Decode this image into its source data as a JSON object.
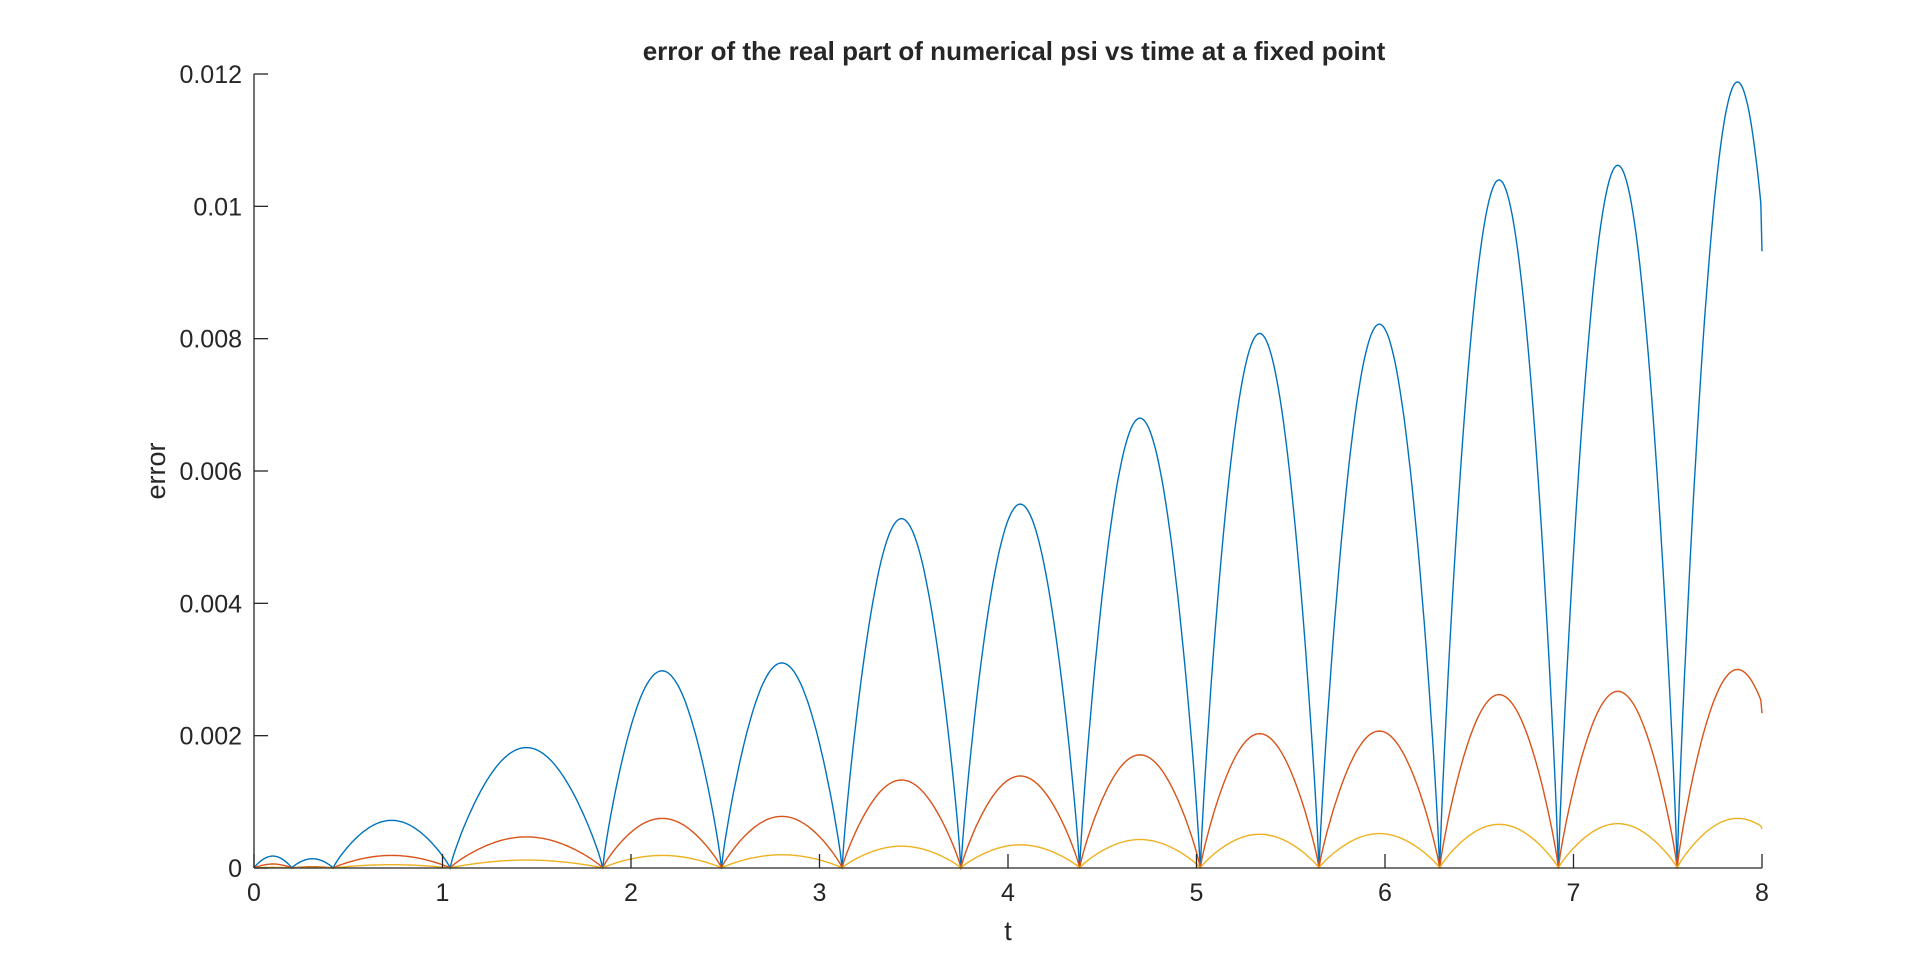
{
  "chart_data": {
    "type": "line",
    "title": "error of the real part of numerical psi vs time at a fixed point",
    "xlabel": "t",
    "ylabel": "error",
    "xlim": [
      0,
      8
    ],
    "ylim": [
      0,
      0.012
    ],
    "xticks": [
      "0",
      "1",
      "2",
      "3",
      "4",
      "5",
      "6",
      "7",
      "8"
    ],
    "yticks": [
      "0",
      "0.002",
      "0.004",
      "0.006",
      "0.008",
      "0.01",
      "0.012"
    ],
    "grid": false,
    "legend": "none",
    "colors": [
      "#0072BD",
      "#D95319",
      "#EDB120"
    ],
    "zeros": [
      0,
      0.2,
      0.42,
      1.04,
      1.85,
      2.48,
      3.12,
      3.75,
      4.38,
      5.02,
      5.65,
      6.29,
      6.92,
      7.55
    ],
    "series": [
      {
        "peaks": [
          [
            0.1,
            0.00018
          ],
          [
            0.31,
            0.00014
          ],
          [
            0.73,
            0.00072
          ],
          [
            1.63,
            0.00182
          ],
          [
            2.17,
            0.00298
          ],
          [
            2.8,
            0.0031
          ],
          [
            3.45,
            0.00528
          ],
          [
            4.06,
            0.0055
          ],
          [
            4.72,
            0.0068
          ],
          [
            5.33,
            0.00808
          ],
          [
            5.97,
            0.00822
          ],
          [
            6.6,
            0.0104
          ],
          [
            7.22,
            0.01062
          ],
          [
            7.87,
            0.01188
          ]
        ],
        "end": [
          8,
          0.00932
        ]
      },
      {
        "peaks": [
          [
            0.1,
            6e-05
          ],
          [
            0.31,
            2e-05
          ],
          [
            0.73,
            0.00019
          ],
          [
            1.63,
            0.00047
          ],
          [
            2.17,
            0.00075
          ],
          [
            2.8,
            0.00078
          ],
          [
            3.45,
            0.00133
          ],
          [
            4.06,
            0.00139
          ],
          [
            4.72,
            0.00171
          ],
          [
            5.33,
            0.00203
          ],
          [
            5.97,
            0.00207
          ],
          [
            6.6,
            0.00262
          ],
          [
            7.22,
            0.00267
          ],
          [
            7.87,
            0.003
          ]
        ],
        "end": [
          8,
          0.00234
        ]
      },
      {
        "peaks": [
          [
            0.1,
            1e-05
          ],
          [
            0.31,
            1e-05
          ],
          [
            0.73,
            5e-05
          ],
          [
            1.63,
            0.00012
          ],
          [
            2.17,
            0.00019
          ],
          [
            2.8,
            0.0002
          ],
          [
            3.45,
            0.00033
          ],
          [
            4.06,
            0.00035
          ],
          [
            4.72,
            0.00043
          ],
          [
            5.33,
            0.00051
          ],
          [
            5.97,
            0.00052
          ],
          [
            6.6,
            0.00066
          ],
          [
            7.22,
            0.00067
          ],
          [
            7.87,
            0.00075
          ]
        ],
        "end": [
          8,
          0.00059
        ]
      }
    ]
  }
}
